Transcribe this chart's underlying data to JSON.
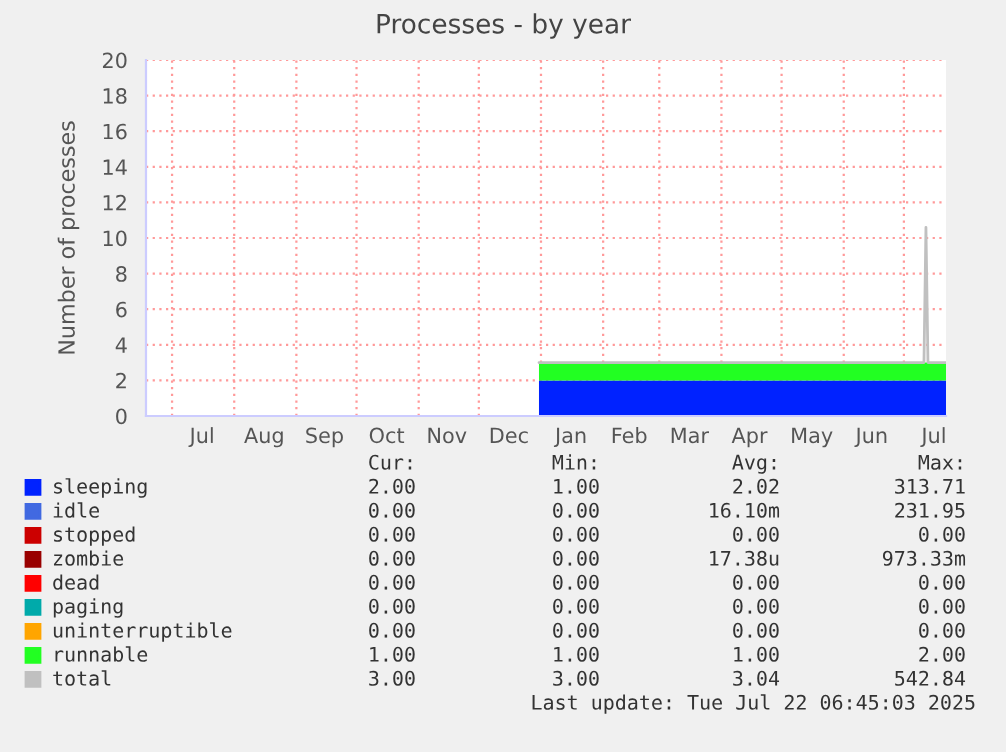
{
  "chart_data": {
    "type": "area",
    "stacked": true,
    "title": "Processes - by year",
    "ylabel": "Number of processes",
    "xlim": [
      "2024-06-18",
      "2025-07-22"
    ],
    "xticks": [
      {
        "value": "2024-07-01",
        "label": null
      },
      {
        "value": "2024-08-01",
        "label": null
      },
      {
        "value": "2024-09-01",
        "label": null
      },
      {
        "value": "2024-10-01",
        "label": null
      },
      {
        "value": "2024-11-01",
        "label": null
      },
      {
        "value": "2024-12-01",
        "label": null
      },
      {
        "value": "2025-01-01",
        "label": null
      },
      {
        "value": "2025-02-01",
        "label": null
      },
      {
        "value": "2025-03-01",
        "label": null
      },
      {
        "value": "2025-04-01",
        "label": null
      },
      {
        "value": "2025-05-01",
        "label": null
      },
      {
        "value": "2025-06-01",
        "label": null
      },
      {
        "value": "2025-07-01",
        "label": null
      },
      {
        "value": "2024-07-16",
        "label": "Jul"
      },
      {
        "value": "2024-08-16",
        "label": "Aug"
      },
      {
        "value": "2024-09-15",
        "label": "Sep"
      },
      {
        "value": "2024-10-16",
        "label": "Oct"
      },
      {
        "value": "2024-11-15",
        "label": "Nov"
      },
      {
        "value": "2024-12-16",
        "label": "Dec"
      },
      {
        "value": "2025-01-16",
        "label": "Jan"
      },
      {
        "value": "2025-02-14",
        "label": "Feb"
      },
      {
        "value": "2025-03-16",
        "label": "Mar"
      },
      {
        "value": "2025-04-15",
        "label": "Apr"
      },
      {
        "value": "2025-05-16",
        "label": "May"
      },
      {
        "value": "2025-06-15",
        "label": "Jun"
      },
      {
        "value": "2025-07-16",
        "label": "Jul"
      }
    ],
    "ylim": [
      0,
      20
    ],
    "yticks": [
      0,
      2,
      4,
      6,
      8,
      10,
      12,
      14,
      16,
      18,
      20
    ],
    "grid": true,
    "legend": "bottom",
    "x": [
      "2024-12-31",
      "2025-07-11",
      "2025-07-12",
      "2025-07-13",
      "2025-07-22"
    ],
    "series": [
      {
        "name": "sleeping",
        "color": "#0022ff",
        "values": [
          2,
          2,
          2,
          2,
          2
        ]
      },
      {
        "name": "idle",
        "color": "#4169e1",
        "values": [
          null,
          null,
          null,
          null,
          null
        ]
      },
      {
        "name": "stopped",
        "color": "#cc0000",
        "values": [
          null,
          null,
          null,
          null,
          null
        ]
      },
      {
        "name": "zombie",
        "color": "#990000",
        "values": [
          null,
          null,
          null,
          null,
          null
        ]
      },
      {
        "name": "dead",
        "color": "#ff0000",
        "values": [
          null,
          null,
          null,
          null,
          null
        ]
      },
      {
        "name": "paging",
        "color": "#00aaaa",
        "values": [
          null,
          null,
          null,
          null,
          null
        ]
      },
      {
        "name": "uninterruptible",
        "color": "#ffa500",
        "values": [
          null,
          null,
          null,
          null,
          null
        ]
      },
      {
        "name": "runnable",
        "color": "#22ff22",
        "values": [
          1,
          1,
          1,
          1,
          1
        ]
      },
      {
        "name": "total",
        "color": "#c0c0c0",
        "type": "line",
        "values": [
          3,
          3,
          10.6,
          3,
          3
        ]
      }
    ],
    "annotations": [
      "Cur:",
      "Min:",
      "Avg:",
      "Max:",
      "2.00",
      "1.00",
      "2.02",
      "313.71",
      "0.00",
      "0.00",
      "16.10m",
      "231.95",
      "0.00",
      "0.00",
      "0.00",
      "0.00",
      "0.00",
      "0.00",
      "17.38u",
      "973.33m",
      "0.00",
      "0.00",
      "0.00",
      "0.00",
      "0.00",
      "0.00",
      "0.00",
      "0.00",
      "0.00",
      "0.00",
      "0.00",
      "0.00",
      "1.00",
      "1.00",
      "1.00",
      "2.00",
      "3.00",
      "3.00",
      "3.04",
      "542.84",
      "Last update: Tue Jul 22 06:45:03 2025"
    ]
  }
}
